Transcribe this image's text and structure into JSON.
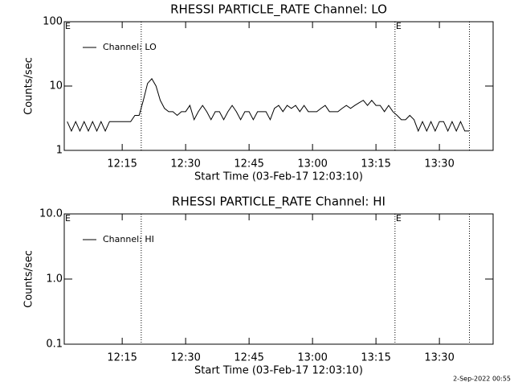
{
  "chart_data": [
    {
      "type": "line",
      "title": "RHESSI PARTICLE_RATE Channel: LO",
      "xlabel": "Start Time (03-Feb-17 12:03:10)",
      "ylabel": "Counts/sec",
      "x": [
        722,
        723,
        724,
        725,
        726,
        727,
        728,
        729,
        730,
        731,
        732,
        733,
        734,
        735,
        736,
        737,
        738,
        739,
        740,
        741,
        742,
        743,
        744,
        745,
        746,
        747,
        748,
        749,
        750,
        751,
        752,
        753,
        754,
        755,
        756,
        757,
        758,
        759,
        760,
        761,
        762,
        763,
        764,
        765,
        766,
        767,
        768,
        769,
        770,
        771,
        772,
        773,
        774,
        775,
        776,
        777,
        778,
        779,
        780,
        781,
        782,
        783,
        784,
        785,
        786,
        787,
        788,
        789,
        790,
        791,
        792,
        793,
        794,
        795,
        796,
        797,
        798,
        799,
        800,
        801,
        802,
        803,
        804,
        805,
        806,
        807,
        808,
        809,
        810,
        811,
        812,
        813,
        814,
        815,
        816,
        817
      ],
      "series": [
        {
          "name": "Channel: LO",
          "color": "#000000",
          "values": [
            2.8,
            2,
            2.8,
            2,
            2.8,
            2,
            2.8,
            2,
            2.8,
            2,
            2.8,
            2.8,
            2.8,
            2.8,
            2.8,
            2.8,
            3.5,
            3.5,
            6,
            11,
            13,
            10,
            6,
            4.5,
            4,
            4,
            3.5,
            4,
            4,
            5,
            3,
            4,
            5,
            4,
            3,
            4,
            4,
            3,
            4,
            5,
            4,
            3,
            4,
            4,
            3,
            4,
            4,
            4,
            3,
            4.5,
            5,
            4,
            5,
            4.5,
            5,
            4,
            5,
            4,
            4,
            4,
            4.5,
            5,
            4,
            4,
            4,
            4.5,
            5,
            4.5,
            5,
            5.5,
            6,
            5,
            6,
            5,
            5,
            4,
            5,
            4,
            3.5,
            3,
            3,
            3.5,
            3,
            2,
            2.8,
            2,
            2.8,
            2,
            2.8,
            2.8,
            2,
            2.8,
            2,
            2.8,
            2,
            2
          ]
        }
      ],
      "xlim": [
        721.3,
        822.7
      ],
      "xticks": [
        {
          "value": 735,
          "label": "12:15"
        },
        {
          "value": 750,
          "label": "12:30"
        },
        {
          "value": 765,
          "label": "12:45"
        },
        {
          "value": 780,
          "label": "13:00"
        },
        {
          "value": 795,
          "label": "13:15"
        },
        {
          "value": 810,
          "label": "13:30"
        }
      ],
      "ylim": [
        1,
        100
      ],
      "yticks": [
        1,
        10,
        100
      ],
      "ylog": true,
      "vlines": [
        739.5,
        799.5,
        817.1
      ],
      "annotations": [
        {
          "x": 721.3,
          "text": "E"
        },
        {
          "x": 799.5,
          "text": "E"
        }
      ]
    },
    {
      "type": "line",
      "title": "RHESSI PARTICLE_RATE Channel: HI",
      "xlabel": "Start Time (03-Feb-17 12:03:10)",
      "ylabel": "Counts/sec",
      "x": [],
      "series": [
        {
          "name": "Channel: HI",
          "color": "#000000",
          "values": []
        }
      ],
      "xlim": [
        721.3,
        822.7
      ],
      "xticks": [
        {
          "value": 735,
          "label": "12:15"
        },
        {
          "value": 750,
          "label": "12:30"
        },
        {
          "value": 765,
          "label": "12:45"
        },
        {
          "value": 780,
          "label": "13:00"
        },
        {
          "value": 795,
          "label": "13:15"
        },
        {
          "value": 810,
          "label": "13:30"
        }
      ],
      "ylim": [
        0.1,
        10
      ],
      "yticks": [
        0.1,
        {
          "value": 1,
          "label": "1.0"
        },
        {
          "value": 10,
          "label": "10.0"
        }
      ],
      "ylog": true,
      "vlines": [
        739.5,
        799.5,
        817.1
      ],
      "annotations": [
        {
          "x": 721.3,
          "text": "E"
        },
        {
          "x": 799.5,
          "text": "E"
        }
      ]
    }
  ],
  "footer": "2-Sep-2022 00:55"
}
